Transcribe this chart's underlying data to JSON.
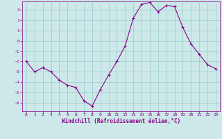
{
  "x": [
    0,
    1,
    2,
    3,
    4,
    5,
    6,
    7,
    8,
    9,
    10,
    11,
    12,
    13,
    14,
    15,
    16,
    17,
    18,
    19,
    20,
    21,
    22,
    23
  ],
  "y": [
    -2.0,
    -3.0,
    -2.6,
    -3.0,
    -3.8,
    -4.3,
    -4.5,
    -5.8,
    -6.3,
    -4.7,
    -3.3,
    -2.0,
    -0.5,
    2.2,
    3.5,
    3.7,
    2.8,
    3.4,
    3.3,
    1.3,
    -0.3,
    -1.3,
    -2.3,
    -2.7
  ],
  "line_color": "#880088",
  "marker_color": "#880088",
  "bg_color": "#cce8e8",
  "grid_color": "#99cccc",
  "xlabel": "Windchill (Refroidissement éolien,°C)",
  "xlabel_color": "#880088",
  "tick_color": "#880088",
  "spine_color": "#880088",
  "xlim": [
    -0.5,
    23.5
  ],
  "ylim": [
    -6.8,
    3.8
  ],
  "yticks": [
    -6,
    -5,
    -4,
    -3,
    -2,
    -1,
    0,
    1,
    2,
    3
  ],
  "xticks": [
    0,
    1,
    2,
    3,
    4,
    5,
    6,
    7,
    8,
    9,
    10,
    11,
    12,
    13,
    14,
    15,
    16,
    17,
    18,
    19,
    20,
    21,
    22,
    23
  ],
  "fig_width": 3.2,
  "fig_height": 2.0,
  "dpi": 100
}
